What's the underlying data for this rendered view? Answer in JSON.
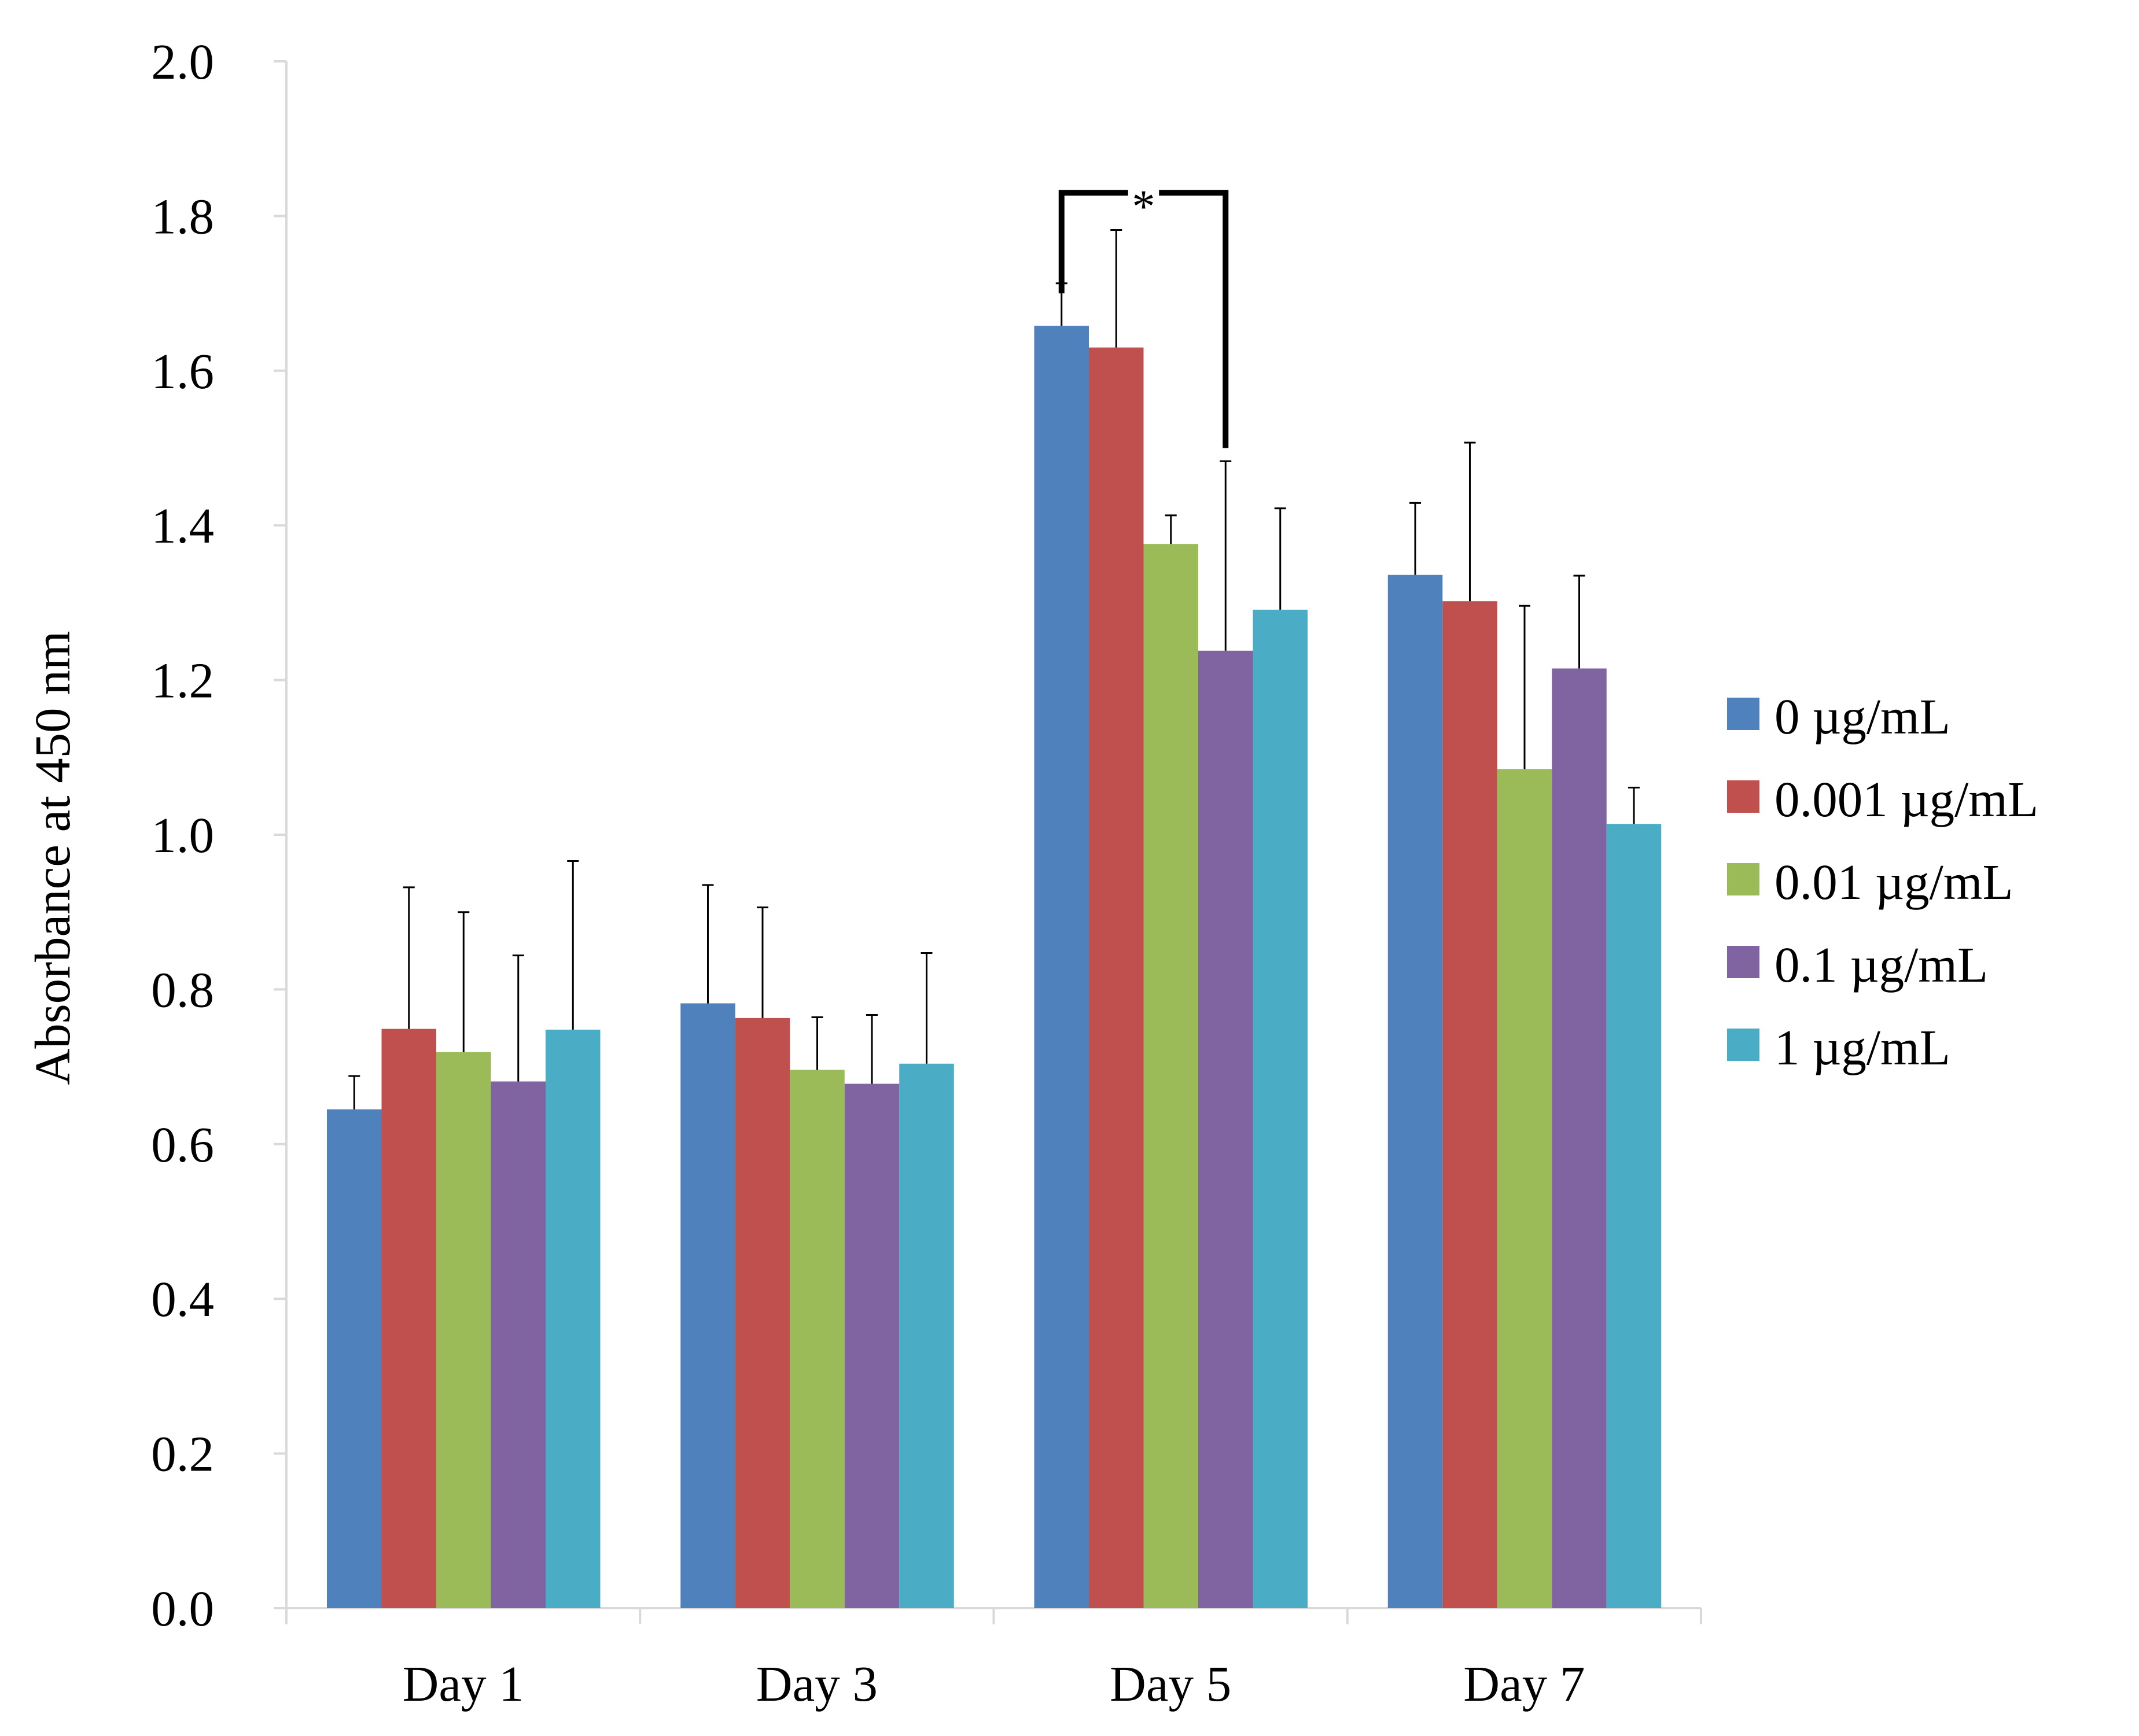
{
  "chart_data": {
    "type": "bar",
    "title": "",
    "xlabel": "",
    "ylabel": "Absorbance at 450 nm",
    "ylim": [
      0,
      2.0
    ],
    "ytick_labels": [
      "0.0",
      "0.2",
      "0.4",
      "0.6",
      "0.8",
      "1.0",
      "1.2",
      "1.4",
      "1.6",
      "1.8",
      "2.0"
    ],
    "ytick_values": [
      0,
      0.2,
      0.4,
      0.6,
      0.8,
      1.0,
      1.2,
      1.4,
      1.6,
      1.8,
      2.0
    ],
    "categories": [
      "Day 1",
      "Day 3",
      "Day 5",
      "Day 7"
    ],
    "series": [
      {
        "name": "0 µg/mL",
        "color": "#4F81BD",
        "values": [
          0.645,
          0.782,
          1.658,
          1.336
        ],
        "errors": [
          0.043,
          0.153,
          0.055,
          0.093
        ]
      },
      {
        "name": "0.001 µg/mL",
        "color": "#C0504D",
        "values": [
          0.749,
          0.763,
          1.63,
          1.302
        ],
        "errors": [
          0.183,
          0.143,
          0.152,
          0.205
        ]
      },
      {
        "name": "0.01 µg/mL",
        "color": "#9BBB59",
        "values": [
          0.719,
          0.696,
          1.376,
          1.085
        ],
        "errors": [
          0.181,
          0.068,
          0.037,
          0.211
        ]
      },
      {
        "name": "0.1 µg/mL",
        "color": "#8064A2",
        "values": [
          0.681,
          0.678,
          1.238,
          1.215
        ],
        "errors": [
          0.163,
          0.089,
          0.245,
          0.12
        ]
      },
      {
        "name": "1 µg/mL",
        "color": "#4BACC6",
        "values": [
          0.748,
          0.704,
          1.291,
          1.014
        ],
        "errors": [
          0.218,
          0.143,
          0.131,
          0.047
        ]
      }
    ],
    "significance": {
      "label": "*",
      "category": "Day 5",
      "from_series": "0 µg/mL",
      "to_series": "0.1 µg/mL"
    },
    "legend_position": "right",
    "grid": false
  }
}
